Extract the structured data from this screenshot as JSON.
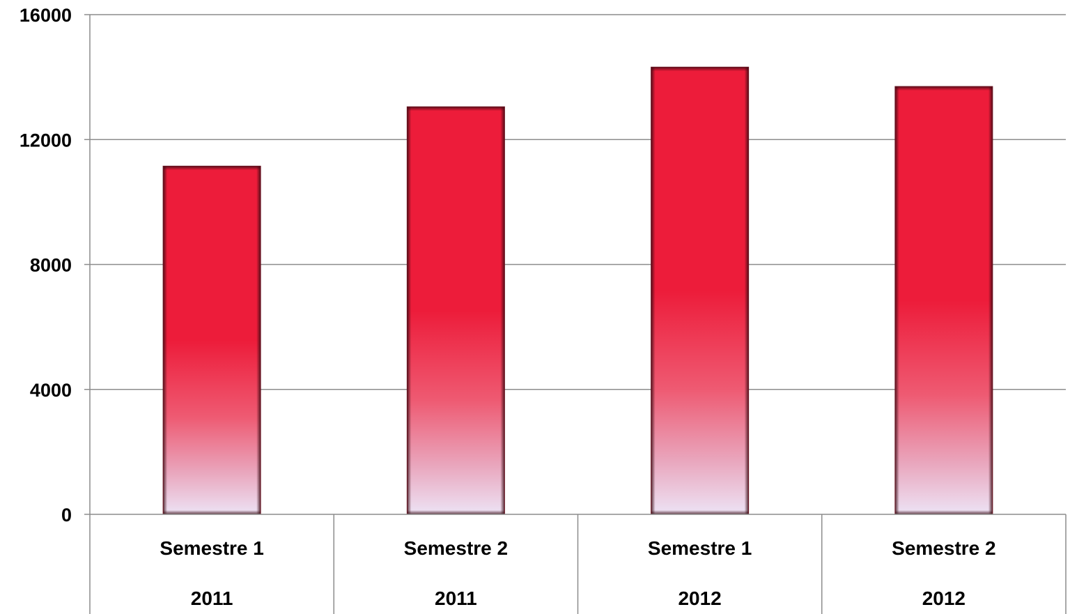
{
  "chart_data": {
    "type": "bar",
    "categories": [
      {
        "label": "Semestre 1",
        "group": "2011"
      },
      {
        "label": "Semestre 2",
        "group": "2011"
      },
      {
        "label": "Semestre 1",
        "group": "2012"
      },
      {
        "label": "Semestre 2",
        "group": "2012"
      }
    ],
    "values": [
      11150,
      13050,
      14320,
      13700
    ],
    "yticks": [
      "0",
      "4000",
      "8000",
      "12000",
      "16000"
    ],
    "ylim": [
      0,
      16000
    ],
    "grid": true,
    "legend": "none",
    "colors": {
      "bar_top": "#ed1c3a",
      "bar_mid": "#ee5a72",
      "bar_bottom": "#ede3f5",
      "bar_edge": "#6a1220",
      "grid": "#8c8c8c"
    }
  }
}
